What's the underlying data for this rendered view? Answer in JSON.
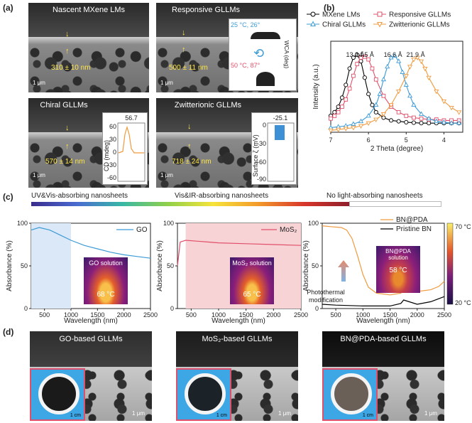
{
  "panel_labels": {
    "a": "(a)",
    "b": "(b)",
    "c": "(c)",
    "d": "(d)"
  },
  "panel_a": {
    "images": [
      {
        "title": "Nascent MXene LMs",
        "thickness": "310 ± 10 nm",
        "scale": "1 μm"
      },
      {
        "title": "Responsive GLLMs",
        "thickness": "500 ± 11 nm",
        "scale": "1 μm"
      },
      {
        "title": "Chiral GLLMs",
        "thickness": "570 ± 14 nm",
        "scale": "1 μm"
      },
      {
        "title": "Zwitterionic GLLMs",
        "thickness": "718 ± 24 nm",
        "scale": "1 μm"
      }
    ],
    "wca_inset": {
      "ylabel": "WCA (deg)",
      "top": "25 °C, 26°",
      "bottom": "50 °C, 87°"
    },
    "cd_inset": {
      "value": "56.7",
      "ylabel": "CD (mdeg)",
      "ticks": [
        "60",
        "30",
        "0",
        "-30",
        "-60"
      ]
    },
    "zeta_inset": {
      "value": "-25.1",
      "ylabel": "Surface ζ (mV)",
      "ticks": [
        "0",
        "-30",
        "-60",
        "-90"
      ]
    }
  },
  "chart_data": [
    {
      "type": "line",
      "panel": "b",
      "xlabel": "2 Theta (degree)",
      "ylabel": "Intensity (a.u.)",
      "xlim": [
        7,
        3.5
      ],
      "x_ticks": [
        "7",
        "6",
        "5",
        "4"
      ],
      "series": [
        {
          "name": "MXene LMs",
          "color": "#000000",
          "peak": 6.35,
          "label": "13.2 Å",
          "x": [
            7,
            6.9,
            6.8,
            6.7,
            6.6,
            6.5,
            6.4,
            6.3,
            6.2,
            6.1,
            6.0,
            5.9,
            5.8,
            5.6,
            5.4,
            5.2,
            5.0,
            4.8,
            4.6,
            4.4,
            4.2,
            4.0,
            3.8,
            3.6
          ],
          "y": [
            0.18,
            0.22,
            0.28,
            0.38,
            0.52,
            0.7,
            0.82,
            0.85,
            0.78,
            0.6,
            0.42,
            0.3,
            0.22,
            0.16,
            0.13,
            0.12,
            0.11,
            0.105,
            0.1,
            0.1,
            0.1,
            0.1,
            0.1,
            0.1
          ]
        },
        {
          "name": "Responsive GLLMs",
          "color": "#e0506a",
          "peak": 6.1,
          "label": "14.5 Å",
          "x": [
            7,
            6.9,
            6.8,
            6.7,
            6.6,
            6.5,
            6.4,
            6.3,
            6.2,
            6.1,
            6.0,
            5.9,
            5.8,
            5.6,
            5.4,
            5.2,
            5.0,
            4.8,
            4.6,
            4.4,
            4.2,
            4.0,
            3.8,
            3.6
          ],
          "y": [
            0.15,
            0.18,
            0.22,
            0.28,
            0.36,
            0.48,
            0.62,
            0.75,
            0.82,
            0.83,
            0.8,
            0.7,
            0.58,
            0.4,
            0.28,
            0.22,
            0.18,
            0.16,
            0.15,
            0.14,
            0.14,
            0.13,
            0.13,
            0.13
          ]
        },
        {
          "name": "Chiral GLLMs",
          "color": "#3d9bd6",
          "peak": 5.35,
          "label": "16.6 Å",
          "x": [
            7,
            6.8,
            6.6,
            6.4,
            6.2,
            6.0,
            5.8,
            5.7,
            5.6,
            5.5,
            5.4,
            5.3,
            5.2,
            5.1,
            5.0,
            4.9,
            4.8,
            4.6,
            4.4,
            4.2,
            4.0,
            3.8,
            3.6
          ],
          "y": [
            0.05,
            0.06,
            0.07,
            0.09,
            0.12,
            0.18,
            0.3,
            0.42,
            0.58,
            0.72,
            0.82,
            0.84,
            0.78,
            0.66,
            0.52,
            0.4,
            0.3,
            0.2,
            0.15,
            0.12,
            0.11,
            0.1,
            0.1
          ]
        },
        {
          "name": "Zwitterionic GLLMs",
          "color": "#f09a3e",
          "peak": 4.75,
          "label": "21.9 Å",
          "x": [
            7,
            6.8,
            6.6,
            6.4,
            6.2,
            6.0,
            5.8,
            5.6,
            5.4,
            5.2,
            5.0,
            4.9,
            4.8,
            4.7,
            4.6,
            4.5,
            4.4,
            4.2,
            4.0,
            3.8,
            3.6
          ],
          "y": [
            0.02,
            0.03,
            0.04,
            0.05,
            0.07,
            0.1,
            0.14,
            0.2,
            0.3,
            0.45,
            0.62,
            0.72,
            0.8,
            0.82,
            0.78,
            0.7,
            0.6,
            0.45,
            0.34,
            0.27,
            0.22
          ]
        }
      ]
    },
    {
      "type": "line",
      "panel": "c1",
      "xlabel": "Wavelength (nm)",
      "ylabel": "Absorbance (%)",
      "xlim": [
        250,
        2500
      ],
      "ylim": [
        0,
        100
      ],
      "x_ticks": [
        "500",
        "1000",
        "1500",
        "2000",
        "2500"
      ],
      "y_ticks": [
        "100",
        "50",
        "0"
      ],
      "series": [
        {
          "name": "GO",
          "color": "#3d9bd6",
          "x": [
            250,
            400,
            600,
            800,
            1000,
            1250,
            1500,
            1750,
            2000,
            2250,
            2500
          ],
          "y": [
            92,
            95,
            92,
            86,
            80,
            74,
            70,
            66,
            63,
            61,
            59
          ]
        }
      ],
      "inset_title": "GO solution",
      "inset_temp": "68 °C"
    },
    {
      "type": "line",
      "panel": "c2",
      "xlabel": "Wavelength (nm)",
      "ylabel": "Absorbance (%)",
      "xlim": [
        250,
        2500
      ],
      "ylim": [
        0,
        100
      ],
      "x_ticks": [
        "500",
        "1000",
        "1500",
        "2000",
        "2500"
      ],
      "y_ticks": [
        "100",
        "50",
        "0"
      ],
      "series": [
        {
          "name": "MoS₂",
          "color": "#e0506a",
          "x": [
            250,
            300,
            400,
            600,
            800,
            1000,
            1500,
            2000,
            2500
          ],
          "y": [
            50,
            78,
            80,
            79,
            78,
            77,
            76,
            75,
            74
          ]
        }
      ],
      "inset_title": "MoS₂ solution",
      "inset_temp": "65 °C"
    },
    {
      "type": "line",
      "panel": "c3",
      "xlabel": "Wavelength (nm)",
      "ylabel": "Absorbance (%)",
      "xlim": [
        250,
        2500
      ],
      "ylim": [
        0,
        100
      ],
      "x_ticks": [
        "500",
        "1000",
        "1500",
        "2000",
        "2500"
      ],
      "y_ticks": [
        "100",
        "50",
        "0"
      ],
      "series": [
        {
          "name": "BN@PDA",
          "color": "#f09a3e",
          "x": [
            250,
            400,
            600,
            700,
            800,
            900,
            1000,
            1100,
            1250,
            1500,
            1700,
            1750,
            2000,
            2250,
            2400,
            2500
          ],
          "y": [
            97,
            96,
            95,
            92,
            82,
            62,
            40,
            25,
            18,
            16,
            18,
            24,
            20,
            22,
            26,
            32
          ]
        },
        {
          "name": "Pristine BN",
          "color": "#000000",
          "x": [
            250,
            500,
            1000,
            1500,
            1700,
            1750,
            2000,
            2250,
            2500
          ],
          "y": [
            5,
            4,
            3,
            3,
            6,
            10,
            5,
            8,
            14
          ]
        }
      ],
      "annotation": "Photothermal modification",
      "inset_title": "BN@PDA solution",
      "inset_temp": "58 °C",
      "colorbar": {
        "max": "70 °C",
        "min": "20 °C"
      }
    }
  ],
  "panel_c_bars": {
    "left": "UV&Vis-absorbing nanosheets",
    "middle": "Vis&IR-absorbing nanosheets",
    "right": "No light-absorbing nanosheets"
  },
  "panel_d": [
    {
      "title": "GO-based GLLMs",
      "disc_scale": "1 cm",
      "scale": "1 μm",
      "disc_color": "#1a1a1a"
    },
    {
      "title": "MoS₂-based GLLMs",
      "disc_scale": "1 cm",
      "scale": "1 μm",
      "disc_color": "#1b2328"
    },
    {
      "title": "BN@PDA-based GLLMs",
      "disc_scale": "1 cm",
      "scale": "1 μm",
      "disc_color": "#6b6058"
    }
  ]
}
